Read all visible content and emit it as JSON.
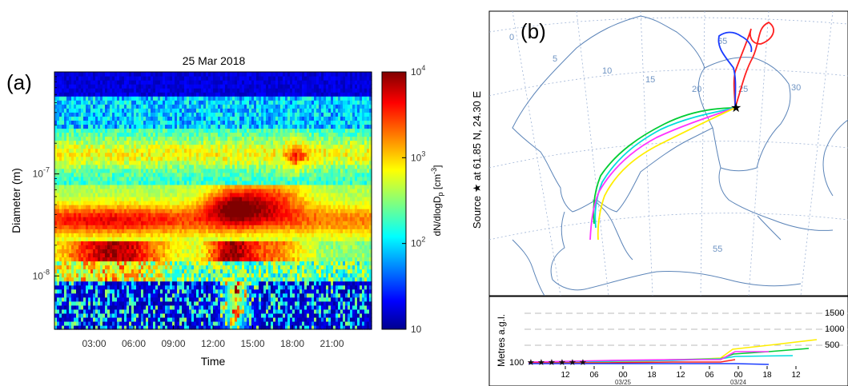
{
  "chart_data": [
    {
      "type": "heatmap",
      "panel_label": "(a)",
      "title": "25 Mar 2018",
      "xlabel": "Time",
      "ylabel": "Diameter  (m)",
      "x_ticks": [
        "03:00",
        "06:00",
        "09:00",
        "12:00",
        "15:00",
        "18:00",
        "21:00"
      ],
      "xlim_hours": [
        0,
        24
      ],
      "yscale": "log",
      "y_ticks": [
        {
          "base": "10",
          "exp": "-7",
          "value": 1e-07
        },
        {
          "base": "10",
          "exp": "-8",
          "value": 1e-08
        }
      ],
      "ylim": [
        3e-09,
        1e-06
      ],
      "colorbar": {
        "label_main": "dN/dlogD",
        "label_sub": "p",
        "label_unit": " [cm",
        "label_unit_exp": "-3",
        "label_close": "]",
        "scale": "log",
        "range": [
          10,
          10000
        ],
        "ticks": [
          {
            "text": "10",
            "exp": "",
            "value": 10
          },
          {
            "text": "10",
            "exp": "2",
            "value": 100
          },
          {
            "text": "10",
            "exp": "3",
            "value": 1000
          },
          {
            "text": "10",
            "exp": "4",
            "value": 10000
          }
        ],
        "colormap": "jet"
      },
      "features": [
        {
          "desc": "accumulation mode band",
          "time_h": [
            0.5,
            8.0
          ],
          "diameter_m": [
            2.5e-08,
            4.5e-08
          ],
          "concentration": 5000
        },
        {
          "desc": "peak band",
          "time_h": [
            11.5,
            15.0
          ],
          "diameter_m": [
            3.5e-08,
            6e-08
          ],
          "concentration": 9000
        },
        {
          "desc": "band after 15:00",
          "time_h": [
            15.0,
            19.5
          ],
          "diameter_m": [
            4e-08,
            8e-08
          ],
          "concentration": 3000
        },
        {
          "desc": "small particles near 14:00",
          "time_h": [
            12.5,
            14.5
          ],
          "diameter_m": [
            4e-09,
            1e-08
          ],
          "concentration": 1500
        }
      ]
    },
    {
      "type": "line",
      "panel_label": "(b)",
      "ylabel_source": "Source",
      "ylabel_at": "at",
      "ylabel_coords": "61.85 N,  24.30 E",
      "map_labels": [
        "0",
        "5",
        "10",
        "15",
        "20",
        "25",
        "30",
        "65",
        "55"
      ],
      "altitude_ylabel": "Metres a.g.l.",
      "altitude_ticks": [
        "1500",
        "1000",
        "500"
      ],
      "altitude_start_label": "100",
      "time_ticks": [
        "12",
        "06",
        "00",
        "18",
        "12",
        "06",
        "00",
        "18",
        "12"
      ],
      "date_labels": [
        "03/25",
        "03/24"
      ],
      "series": [
        {
          "color": "#ff2020",
          "description": "north loop"
        },
        {
          "color": "#1a3cff",
          "description": "north loop"
        },
        {
          "color": "#00cc33",
          "description": "south-west arc"
        },
        {
          "color": "#00dddd",
          "description": "south-west arc"
        },
        {
          "color": "#ff33ff",
          "description": "south-west arc"
        },
        {
          "color": "#ffee00",
          "description": "south-west arc"
        }
      ]
    }
  ]
}
